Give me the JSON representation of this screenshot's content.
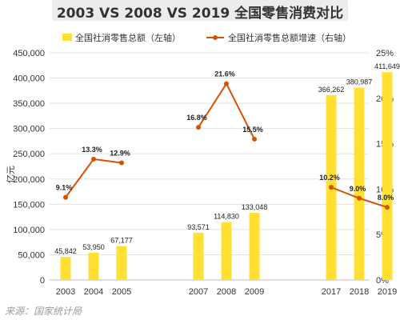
{
  "title": "2003 VS 2008 VS 2019 全国零售消费对比",
  "source_text": "来源：国家统计局",
  "chart_data": {
    "type": "bar",
    "title": "2003 VS 2008 VS 2019 全国零售消费对比",
    "categories": [
      "2003",
      "2004",
      "2005",
      "2007",
      "2008",
      "2009",
      "2017",
      "2018",
      "2019"
    ],
    "groups": [
      [
        0,
        1,
        2
      ],
      [
        3,
        4,
        5
      ],
      [
        6,
        7,
        8
      ]
    ],
    "ylabel_left": "亿元",
    "ylim_left": [
      0,
      450000
    ],
    "yticks_left": [
      "0",
      "50,000",
      "100,000",
      "150,000",
      "200,000",
      "250,000",
      "300,000",
      "350,000",
      "400,000",
      "450,000"
    ],
    "ylim_right": [
      0,
      25
    ],
    "yticks_right": [
      "0%",
      "5%",
      "10%",
      "15%",
      "20%",
      "25%"
    ],
    "legend_position": "top",
    "grid": true,
    "series": [
      {
        "name": "全国社消零售总额（左轴）",
        "type": "bar",
        "axis": "left",
        "color": "#ffe033",
        "values": [
          45842,
          53950,
          67177,
          93571,
          114830,
          133048,
          366262,
          380987,
          411649
        ],
        "labels": [
          "45,842",
          "53,950",
          "67,177",
          "93,571",
          "114,830",
          "133,048",
          "366,262",
          "380,987",
          "411,649"
        ]
      },
      {
        "name": "全国社消零售总额增速（右轴）",
        "type": "line",
        "axis": "right",
        "color": "#d35400",
        "values": [
          9.1,
          13.3,
          12.9,
          16.8,
          21.6,
          15.5,
          10.2,
          9.0,
          8.0
        ],
        "labels": [
          "9.1%",
          "13.3%",
          "12.9%",
          "16.8%",
          "21.6%",
          "15.5%",
          "10.2%",
          "9.0%",
          "8.0%"
        ]
      }
    ]
  }
}
